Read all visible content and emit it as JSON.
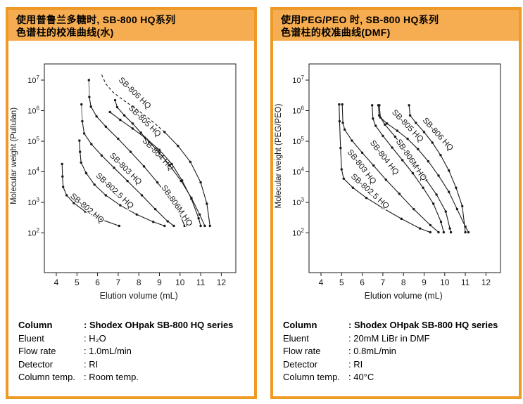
{
  "colors": {
    "panel_border": "#ee9a26",
    "title_bg": "#f6ad52",
    "ink": "#1a1a1a",
    "gray_tip": "#9a9a9a"
  },
  "panels": [
    {
      "title_lines": [
        "使用普鲁兰多糖时, SB-800 HQ系列",
        "色谱柱的校准曲线(水)"
      ],
      "specs": [
        {
          "label": "Column",
          "value": ": Shodex OHpak SB-800 HQ series",
          "bold": true
        },
        {
          "label": "Eluent",
          "value": ": H₂O"
        },
        {
          "label": "Flow rate",
          "value": ": 1.0mL/min"
        },
        {
          "label": "Detector",
          "value": ": RI"
        },
        {
          "label": "Column temp.",
          "value": ": Room temp."
        }
      ]
    },
    {
      "title_lines": [
        "使用PEG/PEO 时, SB-800 HQ系列",
        "色谱柱的校准曲线(DMF)"
      ],
      "specs": [
        {
          "label": "Column",
          "value": ": Shodex OHpak SB-800 HQ series",
          "bold": true
        },
        {
          "label": "Eluent",
          "value": ": 20mM LiBr in DMF"
        },
        {
          "label": "Flow rate",
          "value": ": 0.8mL/min"
        },
        {
          "label": "Detector",
          "value": ": RI"
        },
        {
          "label": "Column temp.",
          "value": ": 40°C"
        }
      ]
    }
  ],
  "chart_data": [
    {
      "type": "line",
      "title": "使用普鲁兰多糖时, SB-800 HQ系列色谱柱的校准曲线(水)",
      "xlabel": "Elution volume (mL)",
      "ylabel": "Molecular weight (Pullulan)",
      "x_ticks": [
        4,
        5,
        6,
        7,
        8,
        9,
        10,
        11,
        12
      ],
      "y_tick_base": "10",
      "y_tick_exponents": [
        7,
        6,
        5,
        4,
        3,
        2
      ],
      "xlim": [
        3.4,
        12.7
      ],
      "ylim_log": [
        0.7,
        7.53
      ],
      "grid": false,
      "legend": "labels-on-curves",
      "series": [
        {
          "name": "SB-802 HQ",
          "points": [
            [
              4.28,
              18000
            ],
            [
              4.3,
              7000
            ],
            [
              4.33,
              3200
            ],
            [
              4.5,
              1700
            ],
            [
              4.85,
              950
            ],
            [
              5.4,
              500
            ],
            [
              6.2,
              270
            ],
            [
              7.05,
              170
            ]
          ],
          "label": [
            5.42,
            560,
            40
          ]
        },
        {
          "name": "SB-802.5 HQ",
          "points": [
            [
              5.12,
              105000
            ],
            [
              5.15,
              45000
            ],
            [
              5.2,
              20000
            ],
            [
              5.45,
              9000
            ],
            [
              5.85,
              3800
            ],
            [
              6.4,
              1700
            ],
            [
              7.1,
              800
            ],
            [
              7.9,
              400
            ],
            [
              8.7,
              230
            ],
            [
              9.25,
              170
            ]
          ],
          "label": [
            6.75,
            2100,
            43
          ]
        },
        {
          "name": "SB-803 HQ",
          "gray_top": true,
          "points": [
            [
              5.22,
              1600000
            ],
            [
              5.26,
              450000
            ],
            [
              5.35,
              180000
            ],
            [
              5.7,
              80000
            ],
            [
              6.2,
              34000
            ],
            [
              6.8,
              13500
            ],
            [
              7.45,
              5000
            ],
            [
              8.15,
              1700
            ],
            [
              8.8,
              600
            ],
            [
              9.4,
              240
            ],
            [
              9.7,
              170
            ]
          ],
          "label": [
            7.28,
            11000,
            45
          ]
        },
        {
          "name": "SB-804 HQ",
          "gray_top": true,
          "points": [
            [
              5.58,
              10000000
            ],
            [
              5.6,
              2800000
            ],
            [
              5.68,
              1350000
            ],
            [
              5.95,
              650000
            ],
            [
              6.4,
              300000
            ],
            [
              7.0,
              120000
            ],
            [
              7.6,
              45000
            ],
            [
              8.25,
              15000
            ],
            [
              8.9,
              4500
            ],
            [
              9.5,
              1300
            ],
            [
              10.0,
              400
            ],
            [
              10.22,
              170
            ]
          ],
          "label": [
            8.85,
            33000,
            46
          ]
        },
        {
          "name": "SB-806M HQ",
          "points": [
            [
              6.6,
              900000
            ],
            [
              7.1,
              500000
            ],
            [
              7.7,
              260000
            ],
            [
              8.3,
              130000
            ],
            [
              9.0,
              52000
            ],
            [
              9.6,
              18000
            ],
            [
              10.1,
              5200
            ],
            [
              10.55,
              1300
            ],
            [
              10.9,
              300
            ],
            [
              11.0,
              170
            ]
          ],
          "label": [
            9.75,
            700,
            55
          ]
        },
        {
          "name": "SB-805 HQ",
          "points": [
            [
              6.85,
              2200000
            ],
            [
              6.95,
              1300000
            ],
            [
              7.3,
              700000
            ],
            [
              7.7,
              380000
            ],
            [
              8.1,
              190000
            ],
            [
              8.5,
              95000
            ],
            [
              9.0,
              42000
            ],
            [
              9.5,
              16000
            ],
            [
              10.05,
              5000
            ],
            [
              10.55,
              1400
            ],
            [
              10.95,
              400
            ],
            [
              11.2,
              170
            ]
          ],
          "label": [
            8.2,
            400000,
            44
          ]
        },
        {
          "name": "SB-806 HQ",
          "dash_until": 7,
          "points": [
            [
              6.2,
              15000000
            ],
            [
              6.4,
              7500000
            ],
            [
              6.75,
              4000000
            ],
            [
              7.3,
              2100000
            ],
            [
              7.95,
              1050000
            ],
            [
              8.6,
              480000
            ],
            [
              9.25,
              200000
            ],
            [
              9.9,
              70000
            ],
            [
              10.5,
              21000
            ],
            [
              11.0,
              4500
            ],
            [
              11.3,
              900
            ],
            [
              11.45,
              170
            ]
          ],
          "label": [
            7.72,
            3300000,
            44
          ]
        }
      ]
    },
    {
      "type": "line",
      "title": "使用PEG/PEO 时, SB-800 HQ系列色谱柱的校准曲线(DMF)",
      "xlabel": "Elution volume (mL)",
      "ylabel": "Molecular weight (PEG/PEO)",
      "x_ticks": [
        4,
        5,
        6,
        7,
        8,
        9,
        10,
        11,
        12
      ],
      "y_tick_base": "10",
      "y_tick_exponents": [
        7,
        6,
        5,
        4,
        3,
        2
      ],
      "xlim": [
        3.4,
        12.7
      ],
      "ylim_log": [
        0.7,
        7.53
      ],
      "grid": false,
      "legend": "labels-on-curves",
      "series": [
        {
          "name": "SB-802.5 HQ",
          "points": [
            [
              4.88,
              1600000
            ],
            [
              4.9,
              450000
            ],
            [
              4.95,
              60000
            ],
            [
              5.0,
              12000
            ],
            [
              5.1,
              6000
            ],
            [
              5.55,
              3000
            ],
            [
              6.2,
              1400
            ],
            [
              7.0,
              650
            ],
            [
              7.9,
              290
            ],
            [
              8.8,
              140
            ],
            [
              9.3,
              105
            ]
          ],
          "label": [
            6.3,
            2000,
            42
          ]
        },
        {
          "name": "SB-803 HQ",
          "points": [
            [
              5.03,
              1600000
            ],
            [
              5.06,
              400000
            ],
            [
              5.15,
              240000
            ],
            [
              5.5,
              105000
            ],
            [
              6.0,
              42000
            ],
            [
              6.55,
              16000
            ],
            [
              7.15,
              5500
            ],
            [
              7.8,
              1900
            ],
            [
              8.5,
              600
            ],
            [
              9.3,
              180
            ],
            [
              9.7,
              105
            ]
          ],
          "label": [
            5.88,
            13000,
            52
          ]
        },
        {
          "name": "SB-804 HQ",
          "points": [
            [
              6.48,
              1500000
            ],
            [
              6.52,
              550000
            ],
            [
              6.65,
              320000
            ],
            [
              7.0,
              150000
            ],
            [
              7.45,
              62000
            ],
            [
              7.95,
              24000
            ],
            [
              8.45,
              9000
            ],
            [
              8.95,
              3000
            ],
            [
              9.45,
              900
            ],
            [
              9.82,
              230
            ],
            [
              9.95,
              105
            ]
          ],
          "label": [
            6.98,
            26000,
            52
          ]
        },
        {
          "name": "SB-806M HQ",
          "points": [
            [
              6.78,
              1500000
            ],
            [
              6.82,
              700000
            ],
            [
              7.1,
              350000
            ],
            [
              7.6,
              140000
            ],
            [
              8.1,
              47000
            ],
            [
              8.6,
              17000
            ],
            [
              9.1,
              5500
            ],
            [
              9.6,
              1800
            ],
            [
              10.05,
              500
            ],
            [
              10.25,
              140
            ],
            [
              10.3,
              105
            ]
          ],
          "label": [
            8.28,
            22000,
            56
          ]
        },
        {
          "name": "SB-805 HQ",
          "points": [
            [
              6.83,
              1500000
            ],
            [
              6.88,
              600000
            ],
            [
              7.2,
              380000
            ],
            [
              7.7,
              220000
            ],
            [
              8.2,
              120000
            ],
            [
              8.7,
              55000
            ],
            [
              9.2,
              22000
            ],
            [
              9.7,
              7500
            ],
            [
              10.2,
              2200
            ],
            [
              10.6,
              600
            ],
            [
              11.0,
              160
            ],
            [
              11.15,
              105
            ]
          ],
          "label": [
            8.12,
            280000,
            46
          ]
        },
        {
          "name": "SB-806 HQ",
          "points": [
            [
              8.27,
              1500000
            ],
            [
              8.32,
              700000
            ],
            [
              8.6,
              400000
            ],
            [
              9.0,
              200000
            ],
            [
              9.4,
              90000
            ],
            [
              9.8,
              35000
            ],
            [
              10.2,
              11000
            ],
            [
              10.55,
              3000
            ],
            [
              10.85,
              750
            ],
            [
              11.0,
              105
            ]
          ],
          "label": [
            9.58,
            150000,
            48
          ]
        }
      ]
    }
  ]
}
